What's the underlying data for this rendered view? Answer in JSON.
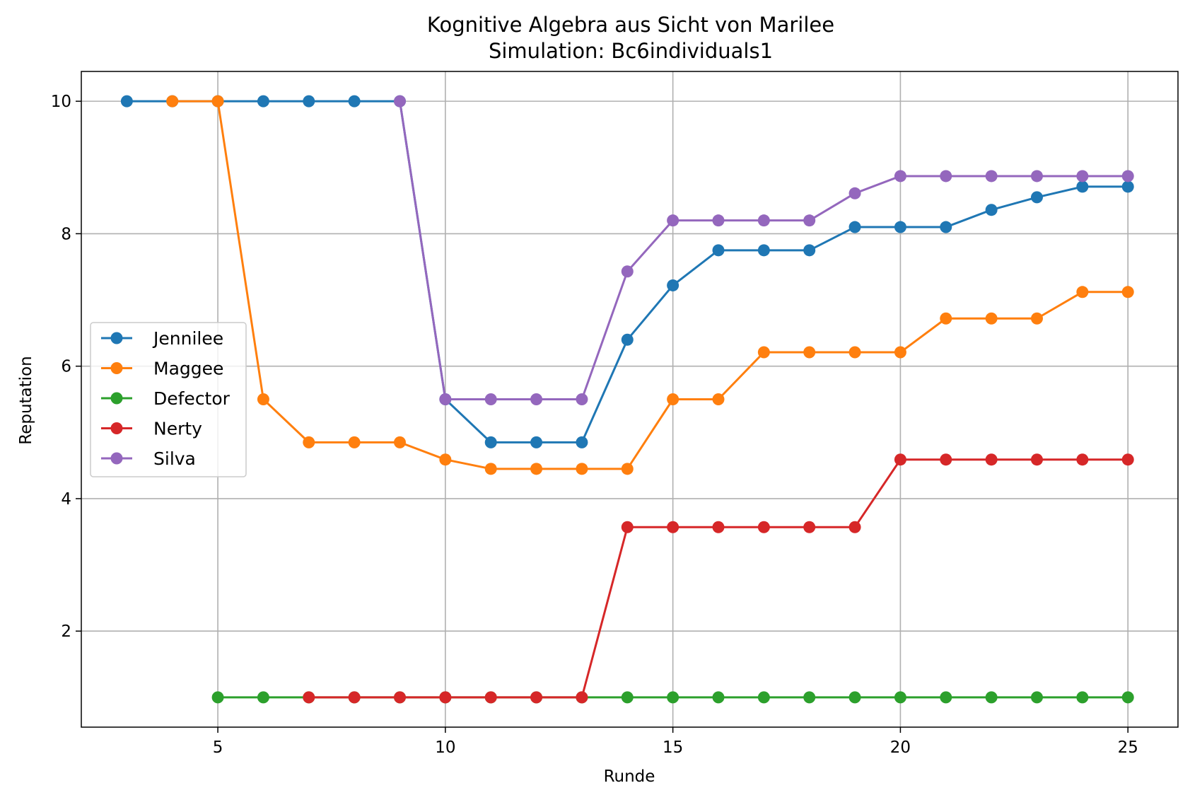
{
  "chart_data": {
    "type": "line",
    "title": "Kognitive Algebra aus Sicht von Marilee",
    "subtitle": "Simulation: Bc6individuals1",
    "xlabel": "Runde",
    "ylabel": "Reputation",
    "xlim": [
      2,
      26.1
    ],
    "ylim": [
      0.55,
      10.45
    ],
    "xticks": [
      5,
      10,
      15,
      20,
      25
    ],
    "yticks": [
      2,
      4,
      6,
      8,
      10
    ],
    "grid": true,
    "legend_position": "center-left",
    "series": [
      {
        "name": "Jennilee",
        "color": "#1f77b4",
        "points": [
          [
            3,
            10
          ],
          [
            4,
            10
          ],
          [
            5,
            10
          ],
          [
            6,
            10
          ],
          [
            7,
            10
          ],
          [
            8,
            10
          ],
          [
            9,
            10
          ],
          [
            10,
            5.5
          ],
          [
            11,
            4.85
          ],
          [
            12,
            4.85
          ],
          [
            13,
            4.85
          ],
          [
            14,
            6.4
          ],
          [
            15,
            7.22
          ],
          [
            16,
            7.75
          ],
          [
            17,
            7.75
          ],
          [
            18,
            7.75
          ],
          [
            19,
            8.1
          ],
          [
            20,
            8.1
          ],
          [
            21,
            8.1
          ],
          [
            22,
            8.36
          ],
          [
            23,
            8.55
          ],
          [
            24,
            8.71
          ],
          [
            25,
            8.71
          ]
        ]
      },
      {
        "name": "Maggee",
        "color": "#ff7f0e",
        "points": [
          [
            4,
            10
          ],
          [
            5,
            10
          ],
          [
            6,
            5.5
          ],
          [
            7,
            4.85
          ],
          [
            8,
            4.85
          ],
          [
            9,
            4.85
          ],
          [
            10,
            4.59
          ],
          [
            11,
            4.45
          ],
          [
            12,
            4.45
          ],
          [
            13,
            4.45
          ],
          [
            14,
            4.45
          ],
          [
            15,
            5.5
          ],
          [
            16,
            5.5
          ],
          [
            17,
            6.21
          ],
          [
            18,
            6.21
          ],
          [
            19,
            6.21
          ],
          [
            20,
            6.21
          ],
          [
            21,
            6.72
          ],
          [
            22,
            6.72
          ],
          [
            23,
            6.72
          ],
          [
            24,
            7.12
          ],
          [
            25,
            7.12
          ]
        ]
      },
      {
        "name": "Defector",
        "color": "#2ca02c",
        "points": [
          [
            5,
            1
          ],
          [
            6,
            1
          ],
          [
            7,
            1
          ],
          [
            8,
            1
          ],
          [
            9,
            1
          ],
          [
            10,
            1
          ],
          [
            11,
            1
          ],
          [
            12,
            1
          ],
          [
            13,
            1
          ],
          [
            14,
            1
          ],
          [
            15,
            1
          ],
          [
            16,
            1
          ],
          [
            17,
            1
          ],
          [
            18,
            1
          ],
          [
            19,
            1
          ],
          [
            20,
            1
          ],
          [
            21,
            1
          ],
          [
            22,
            1
          ],
          [
            23,
            1
          ],
          [
            24,
            1
          ],
          [
            25,
            1
          ]
        ]
      },
      {
        "name": "Nerty",
        "color": "#d62728",
        "points": [
          [
            7,
            1
          ],
          [
            8,
            1
          ],
          [
            9,
            1
          ],
          [
            10,
            1
          ],
          [
            11,
            1
          ],
          [
            12,
            1
          ],
          [
            13,
            1
          ],
          [
            14,
            3.57
          ],
          [
            15,
            3.57
          ],
          [
            16,
            3.57
          ],
          [
            17,
            3.57
          ],
          [
            18,
            3.57
          ],
          [
            19,
            3.57
          ],
          [
            20,
            4.59
          ],
          [
            21,
            4.59
          ],
          [
            22,
            4.59
          ],
          [
            23,
            4.59
          ],
          [
            24,
            4.59
          ],
          [
            25,
            4.59
          ]
        ]
      },
      {
        "name": "Silva",
        "color": "#9467bd",
        "points": [
          [
            9,
            10
          ],
          [
            10,
            5.5
          ],
          [
            11,
            5.5
          ],
          [
            12,
            5.5
          ],
          [
            13,
            5.5
          ],
          [
            14,
            7.43
          ],
          [
            15,
            8.2
          ],
          [
            16,
            8.2
          ],
          [
            17,
            8.2
          ],
          [
            18,
            8.2
          ],
          [
            19,
            8.61
          ],
          [
            20,
            8.87
          ],
          [
            21,
            8.87
          ],
          [
            22,
            8.87
          ],
          [
            23,
            8.87
          ],
          [
            24,
            8.87
          ],
          [
            25,
            8.87
          ]
        ]
      }
    ]
  }
}
